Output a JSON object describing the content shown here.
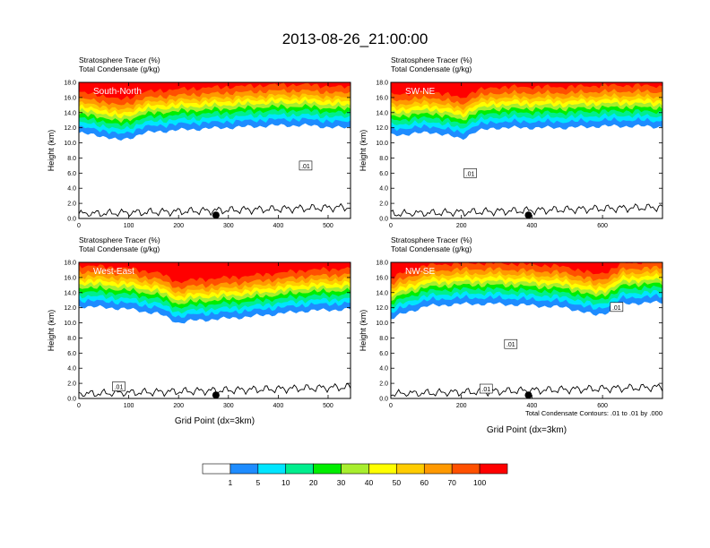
{
  "title": "2013-08-26_21:00:00",
  "field_label_1": "Stratosphere Tracer   (%)",
  "field_label_2": "Total Condensate   (g/kg)",
  "ylabel": "Height (km)",
  "xlabel": "Grid Point (dx=3km)",
  "footnote": "Total Condensate Contours: .01 to .01 by .000",
  "colors": {
    "levels": [
      "#ffffff",
      "#1e8cff",
      "#00e5ff",
      "#00ee8e",
      "#00ee00",
      "#a8ee2e",
      "#ffff00",
      "#ffcc00",
      "#ff9900",
      "#ff5000",
      "#ff0000"
    ]
  },
  "chart_data": [
    {
      "type": "contour",
      "panel_label": "South-North",
      "xlim": [
        0,
        545
      ],
      "xticks": [
        "0",
        "100",
        "200",
        "300",
        "400",
        "500"
      ],
      "xtick_values": [
        0,
        100,
        200,
        300,
        400,
        500
      ],
      "ylim": [
        0,
        18
      ],
      "yticks": [
        "0.0",
        "2.0",
        "4.0",
        "6.0",
        "8.0",
        "10.0",
        "12.0",
        "14.0",
        "16.0",
        "18.0"
      ],
      "marker_x": 275,
      "contour_labels": [
        {
          "text": ".01",
          "x": 455,
          "y": 7.0
        }
      ],
      "tracer_base": [
        [
          0,
          11.3
        ],
        [
          20,
          11.1
        ],
        [
          40,
          11.0
        ],
        [
          60,
          10.7
        ],
        [
          80,
          10.3
        ],
        [
          100,
          10.6
        ],
        [
          130,
          11.3
        ],
        [
          160,
          11.5
        ],
        [
          200,
          11.7
        ],
        [
          260,
          11.9
        ],
        [
          330,
          12.1
        ],
        [
          400,
          12.3
        ],
        [
          460,
          12.3
        ],
        [
          520,
          12.0
        ],
        [
          545,
          12.0
        ]
      ]
    },
    {
      "type": "contour",
      "panel_label": "SW-NE",
      "xlim": [
        0,
        770
      ],
      "xticks": [
        "0",
        "200",
        "400",
        "600"
      ],
      "xtick_values": [
        0,
        200,
        400,
        600
      ],
      "ylim": [
        0,
        18
      ],
      "yticks": [
        "0.0",
        "2.0",
        "4.0",
        "6.0",
        "8.0",
        "10.0",
        "12.0",
        "14.0",
        "16.0",
        "18.0"
      ],
      "marker_x": 390,
      "contour_labels": [
        {
          "text": ".01",
          "x": 225,
          "y": 6.0
        }
      ],
      "tracer_base": [
        [
          0,
          11.0
        ],
        [
          60,
          11.2
        ],
        [
          120,
          11.4
        ],
        [
          160,
          11.0
        ],
        [
          200,
          10.5
        ],
        [
          240,
          11.5
        ],
        [
          300,
          12.0
        ],
        [
          400,
          12.0
        ],
        [
          500,
          12.0
        ],
        [
          600,
          12.2
        ],
        [
          700,
          12.2
        ],
        [
          770,
          12.1
        ]
      ]
    },
    {
      "type": "contour",
      "panel_label": "West-East",
      "xlim": [
        0,
        545
      ],
      "xticks": [
        "0",
        "100",
        "200",
        "300",
        "400",
        "500"
      ],
      "xtick_values": [
        0,
        100,
        200,
        300,
        400,
        500
      ],
      "ylim": [
        0,
        18
      ],
      "yticks": [
        "0.0",
        "2.0",
        "4.0",
        "6.0",
        "8.0",
        "10.0",
        "12.0",
        "14.0",
        "16.0",
        "18.0"
      ],
      "marker_x": 275,
      "contour_labels": [
        {
          "text": ".01",
          "x": 80,
          "y": 1.6
        }
      ],
      "tracer_base": [
        [
          0,
          12.2
        ],
        [
          60,
          12.0
        ],
        [
          100,
          11.8
        ],
        [
          160,
          11.2
        ],
        [
          200,
          10.0
        ],
        [
          230,
          10.3
        ],
        [
          280,
          10.5
        ],
        [
          340,
          10.8
        ],
        [
          400,
          11.2
        ],
        [
          460,
          11.6
        ],
        [
          545,
          11.8
        ]
      ]
    },
    {
      "type": "contour",
      "panel_label": "NW-SE",
      "xlim": [
        0,
        770
      ],
      "xticks": [
        "0",
        "200",
        "400",
        "600"
      ],
      "xtick_values": [
        0,
        200,
        400,
        600
      ],
      "ylim": [
        0,
        18
      ],
      "yticks": [
        "0.0",
        "2.0",
        "4.0",
        "6.0",
        "8.0",
        "10.0",
        "12.0",
        "14.0",
        "16.0",
        "18.0"
      ],
      "marker_x": 390,
      "contour_labels": [
        {
          "text": ".01",
          "x": 340,
          "y": 7.2
        },
        {
          "text": ".01",
          "x": 640,
          "y": 12.1
        },
        {
          "text": ".01",
          "x": 270,
          "y": 1.3
        }
      ],
      "tracer_base": [
        [
          0,
          10.5
        ],
        [
          40,
          11.3
        ],
        [
          100,
          12.2
        ],
        [
          200,
          12.5
        ],
        [
          300,
          12.5
        ],
        [
          400,
          12.3
        ],
        [
          500,
          12.0
        ],
        [
          580,
          11.0
        ],
        [
          620,
          11.5
        ],
        [
          660,
          12.5
        ],
        [
          700,
          12.6
        ],
        [
          770,
          12.7
        ]
      ]
    }
  ],
  "colorbar": {
    "labels": [
      "1",
      "5",
      "10",
      "20",
      "30",
      "40",
      "50",
      "60",
      "70",
      "100"
    ]
  }
}
